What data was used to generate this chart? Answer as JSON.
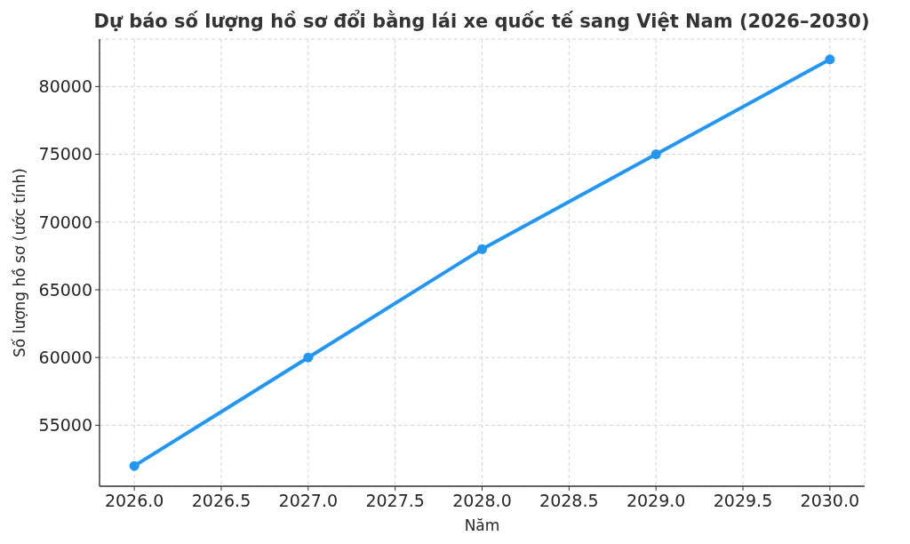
{
  "chart_data": {
    "type": "line",
    "title": "Dự báo số lượng hồ sơ đổi bằng lái xe quốc tế sang Việt Nam (2026–2030)",
    "xlabel": "Năm",
    "ylabel": "Số lượng hồ sơ (ước tính)",
    "x": [
      2026,
      2027,
      2028,
      2029,
      2030
    ],
    "series": [
      {
        "color": "#2196f3",
        "values": [
          52000,
          60000,
          68000,
          75000,
          82000
        ]
      }
    ],
    "xlim": [
      2025.8,
      2030.2
    ],
    "xticks": [
      {
        "value": 2026,
        "label": "2026.0"
      },
      {
        "value": 2026.5,
        "label": "2026.5"
      },
      {
        "value": 2027,
        "label": "2027.0"
      },
      {
        "value": 2027.5,
        "label": "2027.5"
      },
      {
        "value": 2028,
        "label": "2028.0"
      },
      {
        "value": 2028.5,
        "label": "2028.5"
      },
      {
        "value": 2029,
        "label": "2029.0"
      },
      {
        "value": 2029.5,
        "label": "2029.5"
      },
      {
        "value": 2030,
        "label": "2030.0"
      }
    ],
    "ylim": [
      50500,
      83500
    ],
    "yticks": [
      55000,
      60000,
      65000,
      70000,
      75000,
      80000
    ],
    "grid": true,
    "marker": "circle",
    "line_style": "solid"
  }
}
